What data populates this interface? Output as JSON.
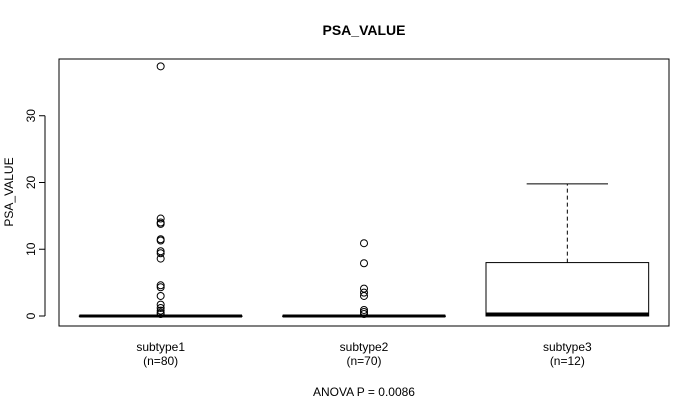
{
  "chart_data": {
    "type": "box",
    "title": "PSA_VALUE",
    "ylabel": "PSA_VALUE",
    "xlabel": "",
    "ylim": [
      -1.5,
      38.5
    ],
    "yticks": [
      0,
      10,
      20,
      30
    ],
    "footer": "ANOVA P = 0.0086",
    "categories": [
      "subtype1",
      "subtype2",
      "subtype3"
    ],
    "counts": [
      "(n=80)",
      "(n=70)",
      "(n=12)"
    ],
    "boxes": [
      {
        "name": "subtype1",
        "n_label": "(n=80)",
        "q1": 0,
        "median": 0,
        "q3": 0,
        "whisker_low": 0,
        "whisker_high": 0,
        "outliers": [
          37.4,
          14.6,
          14.0,
          13.8,
          11.5,
          11.3,
          9.7,
          9.4,
          8.6,
          4.6,
          4.3,
          3.0,
          1.7,
          1.2,
          0.8,
          0.5,
          0.3
        ]
      },
      {
        "name": "subtype2",
        "n_label": "(n=70)",
        "q1": 0,
        "median": 0,
        "q3": 0,
        "whisker_low": 0,
        "whisker_high": 0,
        "outliers": [
          10.9,
          7.9,
          4.1,
          3.5,
          3.0,
          0.9,
          0.6,
          0.3
        ]
      },
      {
        "name": "subtype3",
        "n_label": "(n=12)",
        "q1": 0,
        "median": 0.3,
        "q3": 8.0,
        "whisker_low": 0,
        "whisker_high": 19.8,
        "outliers": []
      }
    ]
  }
}
